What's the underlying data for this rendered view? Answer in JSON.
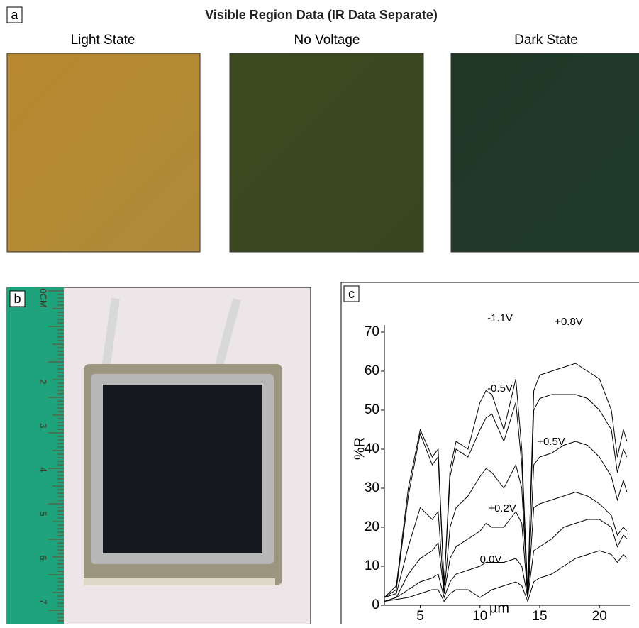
{
  "panel_a": {
    "label": "a",
    "title": "Visible Region Data (IR Data Separate)",
    "images": [
      "Light State",
      "No Voltage",
      "Dark State"
    ]
  },
  "panel_b": {
    "label": "b",
    "ruler_labels": [
      "0CM",
      "2",
      "3",
      "4",
      "5",
      "6",
      "7"
    ]
  },
  "chart_data": {
    "type": "line",
    "panel_label": "c",
    "x_label": "µm",
    "y_label": "%R",
    "x": [
      2,
      3,
      4,
      5,
      6,
      6.5,
      7,
      7.5,
      8,
      9,
      10,
      10.5,
      11,
      12,
      13,
      13.5,
      14,
      14.5,
      15,
      16,
      17,
      18,
      19,
      20,
      21,
      21.5,
      22,
      22.3
    ],
    "series": [
      {
        "name": "-1.1V",
        "color": "#000000",
        "values": [
          2,
          5,
          30,
          45,
          38,
          40,
          5,
          35,
          42,
          40,
          52,
          55,
          54,
          45,
          58,
          40,
          3,
          55,
          59,
          60,
          61,
          62,
          60,
          58,
          50,
          38,
          45,
          42
        ]
      },
      {
        "name": "+0.8V",
        "color": "#000000",
        "values": [
          2,
          4,
          28,
          44,
          36,
          38,
          5,
          33,
          40,
          38,
          45,
          48,
          49,
          42,
          52,
          36,
          3,
          50,
          53,
          54,
          54,
          54,
          53,
          50,
          45,
          34,
          40,
          38
        ]
      },
      {
        "name": "-0.5V",
        "color": "#000000",
        "values": [
          2,
          3,
          15,
          25,
          22,
          24,
          3,
          20,
          25,
          28,
          33,
          35,
          34,
          30,
          36,
          30,
          2,
          36,
          38,
          39,
          41,
          42,
          41,
          38,
          33,
          27,
          32,
          29
        ]
      },
      {
        "name": "+0.5V",
        "color": "#000000",
        "values": [
          1,
          2,
          8,
          12,
          14,
          16,
          3,
          12,
          15,
          17,
          19,
          21,
          20,
          20,
          24,
          21,
          2,
          25,
          26,
          27,
          28,
          29,
          28,
          26,
          23,
          18,
          20,
          19
        ]
      },
      {
        "name": "+0.2V",
        "color": "#000000",
        "values": [
          1,
          2,
          4,
          6,
          7,
          8,
          2,
          6,
          8,
          9,
          10,
          11,
          11,
          11,
          12,
          10,
          2,
          14,
          15,
          17,
          20,
          21,
          22,
          22,
          20,
          15,
          18,
          17
        ]
      },
      {
        "name": "0.0V",
        "color": "#000000",
        "values": [
          1,
          1.5,
          2,
          3,
          4,
          4,
          1,
          3,
          4,
          4,
          2,
          3,
          4,
          5,
          6,
          5,
          1,
          6,
          7,
          8,
          10,
          12,
          13,
          14,
          13,
          11,
          13,
          12
        ]
      }
    ],
    "xlim": [
      2,
      22.6
    ],
    "ylim": [
      0,
      70
    ],
    "xticks": [
      5,
      10,
      15,
      20
    ],
    "yticks": [
      0,
      10,
      20,
      30,
      40,
      50,
      60,
      70
    ]
  }
}
